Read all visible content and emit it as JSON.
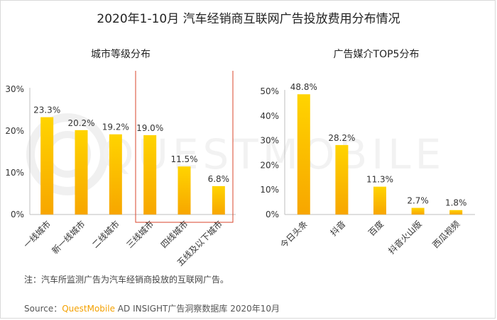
{
  "title": "2020年1-10月 汽车经销商互联网广告投放费用分布情况",
  "note": "注：汽车所监测广告为汽车经销商投放的互联网广告。",
  "source": {
    "prefix": "Source：",
    "brand": "QuestMobile",
    "suffix": " AD INSIGHT广告洞察数据库 2020年10月"
  },
  "watermark": "QUESTMOBILE",
  "colors": {
    "bar_top": "#ffd400",
    "bar_bottom": "#f7a600",
    "highlight_box": "#d9452b",
    "axis": "#bfbfbf"
  },
  "chart_data": [
    {
      "type": "bar",
      "title": "城市等级分布",
      "categories": [
        "一线城市",
        "新一线城市",
        "二线城市",
        "三线城市",
        "四线城市",
        "五线及以下城市"
      ],
      "values": [
        23.3,
        20.2,
        19.2,
        19.0,
        11.5,
        6.8
      ],
      "value_labels": [
        "23.3%",
        "20.2%",
        "19.2%",
        "19.0%",
        "11.5%",
        "6.8%"
      ],
      "yticks": [
        "0%",
        "10%",
        "20%",
        "30%"
      ],
      "ylim": [
        0,
        30
      ],
      "highlight_categories": [
        "三线城市",
        "四线城市",
        "五线及以下城市"
      ],
      "grid": false
    },
    {
      "type": "bar",
      "title": "广告媒介TOP5分布",
      "categories": [
        "今日头条",
        "抖音",
        "百度",
        "抖音火山版",
        "西瓜视频"
      ],
      "values": [
        48.8,
        28.2,
        11.3,
        2.7,
        1.8
      ],
      "value_labels": [
        "48.8%",
        "28.2%",
        "11.3%",
        "2.7%",
        "1.8%"
      ],
      "yticks": [
        "0%",
        "10%",
        "20%",
        "30%",
        "40%",
        "50%"
      ],
      "ylim": [
        0,
        50
      ],
      "grid": false
    }
  ]
}
